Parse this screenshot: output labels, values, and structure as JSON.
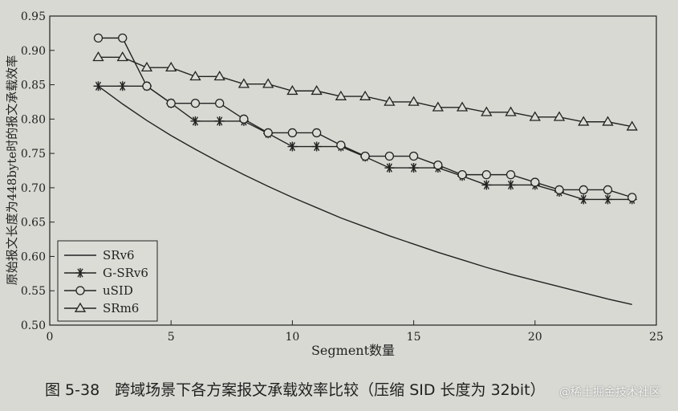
{
  "chart_data": {
    "type": "line",
    "title": "",
    "xlabel": "Segment数量",
    "ylabel": "原始报文长度为448byte时的报文承载效率",
    "xlim": [
      0,
      25
    ],
    "ylim": [
      0.5,
      0.95
    ],
    "xticks": [
      0,
      5,
      10,
      15,
      20,
      25
    ],
    "yticks": [
      0.5,
      0.55,
      0.6,
      0.65,
      0.7,
      0.75,
      0.8,
      0.85,
      0.9,
      0.95
    ],
    "ytick_labels": [
      "0.50",
      "0.55",
      "0.60",
      "0.65",
      "0.70",
      "0.75",
      "0.80",
      "0.85",
      "0.90",
      "0.95"
    ],
    "grid": false,
    "legend_position": "lower-left",
    "series": [
      {
        "name": "SRv6",
        "marker": "none",
        "x": [
          2,
          3,
          4,
          5,
          6,
          7,
          8,
          9,
          10,
          11,
          12,
          13,
          14,
          15,
          16,
          17,
          18,
          19,
          20,
          21,
          22,
          23,
          24
        ],
        "y": [
          0.848,
          0.822,
          0.798,
          0.776,
          0.756,
          0.737,
          0.719,
          0.702,
          0.686,
          0.671,
          0.656,
          0.643,
          0.63,
          0.618,
          0.606,
          0.595,
          0.584,
          0.574,
          0.565,
          0.556,
          0.547,
          0.538,
          0.53
        ]
      },
      {
        "name": "G-SRv6",
        "marker": "star",
        "x": [
          2,
          3,
          4,
          5,
          6,
          7,
          8,
          9,
          10,
          11,
          12,
          13,
          14,
          15,
          16,
          17,
          18,
          19,
          20,
          21,
          22,
          23,
          24
        ],
        "y": [
          0.848,
          0.848,
          0.848,
          0.823,
          0.797,
          0.797,
          0.797,
          0.779,
          0.76,
          0.76,
          0.76,
          0.745,
          0.729,
          0.729,
          0.729,
          0.717,
          0.704,
          0.704,
          0.704,
          0.694,
          0.683,
          0.683,
          0.683
        ]
      },
      {
        "name": "uSID",
        "marker": "circle",
        "x": [
          2,
          3,
          4,
          5,
          6,
          7,
          8,
          9,
          10,
          11,
          12,
          13,
          14,
          15,
          16,
          17,
          18,
          19,
          20,
          21,
          22,
          23,
          24
        ],
        "y": [
          0.918,
          0.918,
          0.848,
          0.823,
          0.823,
          0.823,
          0.8,
          0.78,
          0.78,
          0.78,
          0.762,
          0.746,
          0.746,
          0.746,
          0.733,
          0.719,
          0.719,
          0.719,
          0.708,
          0.697,
          0.697,
          0.697,
          0.686
        ]
      },
      {
        "name": "SRm6",
        "marker": "triangle",
        "x": [
          2,
          3,
          4,
          5,
          6,
          7,
          8,
          9,
          10,
          11,
          12,
          13,
          14,
          15,
          16,
          17,
          18,
          19,
          20,
          21,
          22,
          23,
          24
        ],
        "y": [
          0.89,
          0.89,
          0.875,
          0.875,
          0.862,
          0.862,
          0.851,
          0.851,
          0.841,
          0.841,
          0.833,
          0.833,
          0.825,
          0.825,
          0.817,
          0.817,
          0.81,
          0.81,
          0.803,
          0.803,
          0.796,
          0.796,
          0.789
        ]
      }
    ]
  },
  "caption": "图 5-38　跨域场景下各方案报文承载效率比较（压缩 SID 长度为 32bit）",
  "watermark": "@稀土掘金技术社区"
}
